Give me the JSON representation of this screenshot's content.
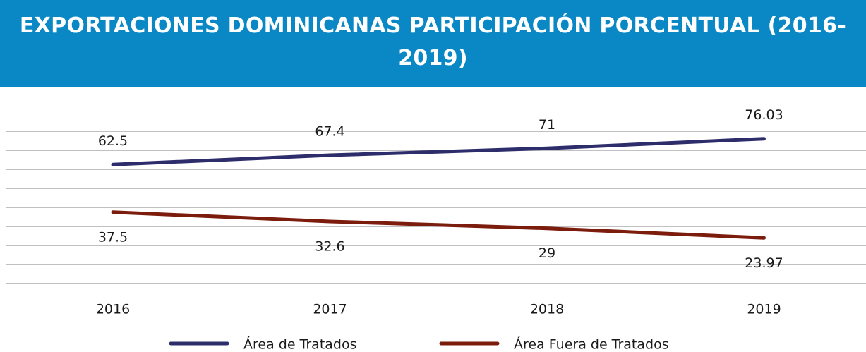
{
  "chart_data": {
    "type": "line",
    "title": "EXPORTACIONES DOMINICANAS PARTICIPACIÓN PORCENTUAL (2016-2019)",
    "categories": [
      "2016",
      "2017",
      "2018",
      "2019"
    ],
    "series": [
      {
        "name": "Área de Tratados",
        "color": "#2e2d6b",
        "values": [
          62.5,
          67.4,
          71,
          76.03
        ]
      },
      {
        "name": "Área Fuera de Tratados",
        "color": "#7b1c0c",
        "values": [
          37.5,
          32.6,
          29,
          23.97
        ]
      }
    ],
    "ylim": [
      0,
      80
    ],
    "yticks": [
      0,
      10,
      20,
      30,
      40,
      50,
      60,
      70,
      80
    ],
    "grid": true,
    "legend": "bottom"
  }
}
